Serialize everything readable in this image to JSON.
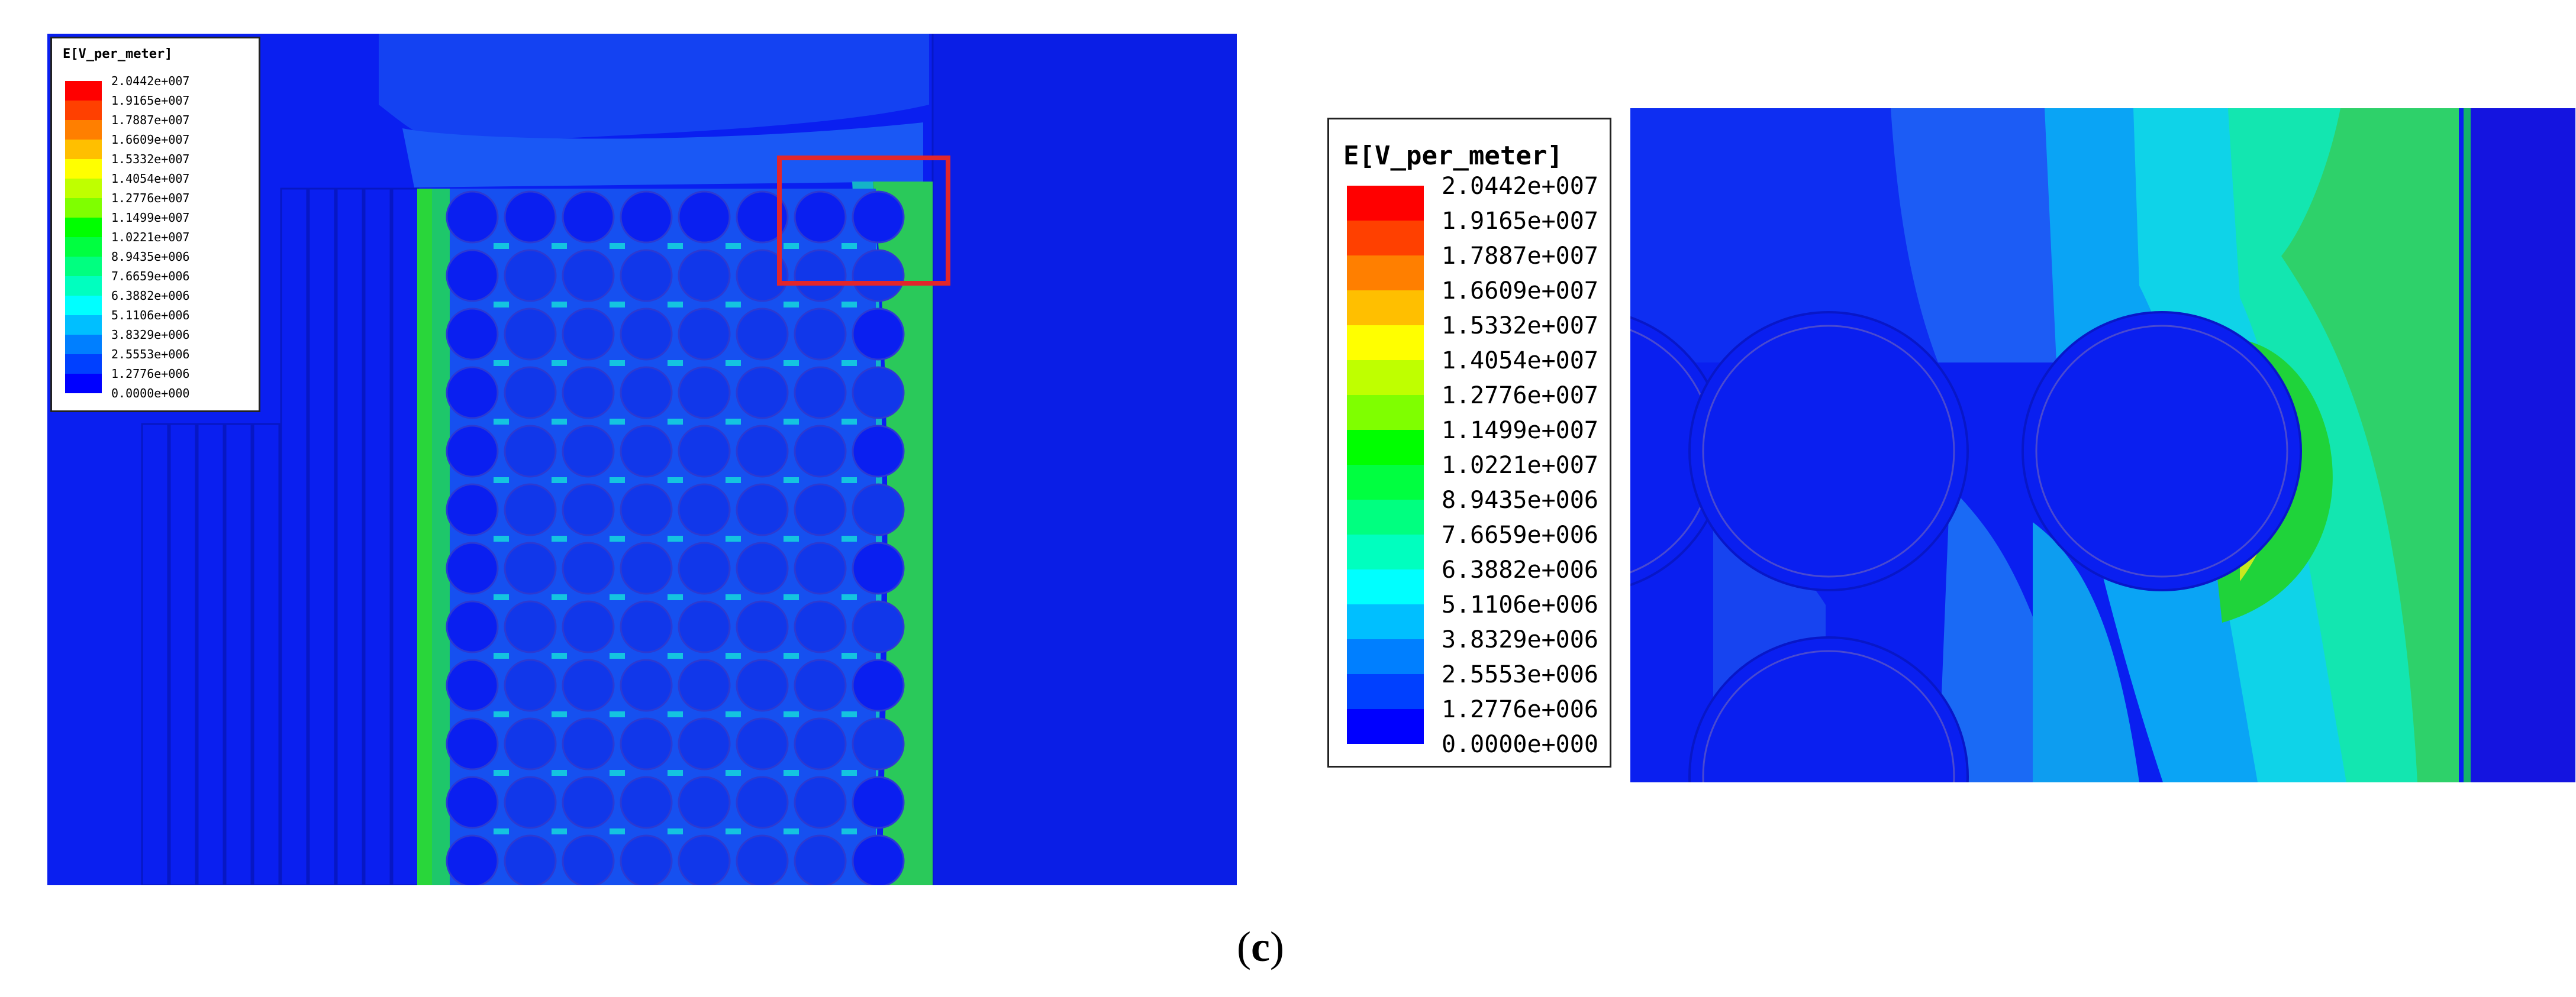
{
  "legend": {
    "title": "E[V_per_meter]",
    "values": [
      "2.0442e+007",
      "1.9165e+007",
      "1.7887e+007",
      "1.6609e+007",
      "1.5332e+007",
      "1.4054e+007",
      "1.2776e+007",
      "1.1499e+007",
      "1.0221e+007",
      "8.9435e+006",
      "7.6659e+006",
      "6.3882e+006",
      "5.1106e+006",
      "3.8329e+006",
      "2.5553e+006",
      "1.2776e+006",
      "0.0000e+000"
    ],
    "colors": [
      "#ff0000",
      "#ff4000",
      "#ff7f00",
      "#ffbf00",
      "#ffff00",
      "#bfff00",
      "#7fff00",
      "#00ff00",
      "#00ff40",
      "#00ff80",
      "#00ffbf",
      "#00ffff",
      "#00bfff",
      "#007fff",
      "#0040ff",
      "#0000ff"
    ]
  },
  "caption": {
    "open": "(",
    "letter": "c",
    "close": ")"
  },
  "colors": {
    "field_background": "#0a1ff0",
    "highlight_box": "#e2262b"
  }
}
